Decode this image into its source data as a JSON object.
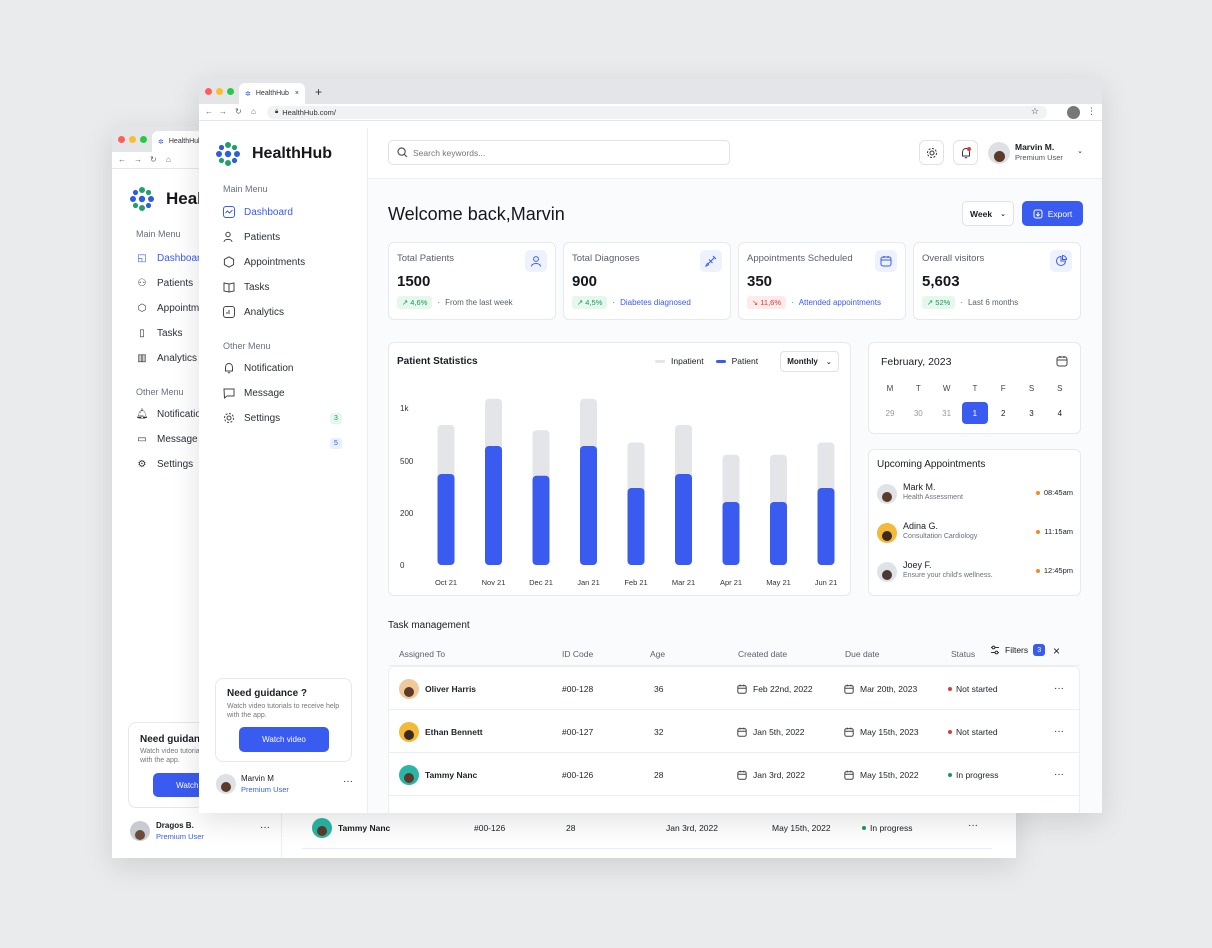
{
  "back_window": {
    "tab_title": "HealthHub",
    "logo_text": "HealthHub",
    "main_menu_label": "Main Menu",
    "nav": [
      "Dashboard",
      "Patients",
      "Appointments",
      "Tasks",
      "Analytics"
    ],
    "other_menu_label": "Other Menu",
    "other_nav": [
      "Notification",
      "Message",
      "Settings"
    ],
    "guidance_title": "Need guidance ?",
    "guidance_text": "Watch video tutorials to receive help with the app.",
    "guidance_button": "Watch video",
    "user_name": "Dragos B.",
    "user_role": "Premium User",
    "rows": [
      {
        "name": "Tammy Nanc",
        "id": "#00-126",
        "age": "28",
        "created": "Jan 3rd, 2022",
        "due": "May 15th, 2022",
        "status": "In progress"
      }
    ]
  },
  "browser": {
    "tab_title": "HealthHub",
    "new_tab": "+",
    "url": "HealthHub.com/"
  },
  "sidebar": {
    "logo_text": "HealthHub",
    "main_menu_label": "Main Menu",
    "items": [
      {
        "label": "Dashboard",
        "icon": "activity-icon",
        "active": true
      },
      {
        "label": "Patients",
        "icon": "users-icon"
      },
      {
        "label": "Appointments",
        "icon": "hexagon-icon"
      },
      {
        "label": "Tasks",
        "icon": "book-icon"
      },
      {
        "label": "Analytics",
        "icon": "chart-icon"
      }
    ],
    "other_menu_label": "Other Menu",
    "other_items": [
      {
        "label": "Notification",
        "icon": "bell-icon",
        "count": "3"
      },
      {
        "label": "Message",
        "icon": "message-icon",
        "count": "5"
      },
      {
        "label": "Settings",
        "icon": "gear-icon"
      }
    ],
    "guidance": {
      "title": "Need guidance ?",
      "text": "Watch video tutorials to receive help with the app.",
      "button": "Watch video"
    },
    "user": {
      "name": "Marvin M",
      "role": "Premium User",
      "more": "···"
    }
  },
  "header": {
    "search_placeholder": "Search keywords...",
    "user_name": "Marvin M.",
    "user_role": "Premium User"
  },
  "welcome": {
    "title": "Welcome back,Marvin",
    "period": "Week",
    "export_label": "Export"
  },
  "kpis": [
    {
      "label": "Total Patients",
      "value": "1500",
      "change": "4,6%",
      "trend": "up",
      "note": "From the last week",
      "note_link": false,
      "icon": "user-icon"
    },
    {
      "label": "Total Diagnoses",
      "value": "900",
      "change": "4,5%",
      "trend": "up",
      "note": "Diabetes diagnosed",
      "note_link": true,
      "icon": "syringe-icon"
    },
    {
      "label": "Appointments Scheduled",
      "value": "350",
      "change": "11,6%",
      "trend": "down",
      "note": "Attended appointments",
      "note_link": true,
      "icon": "calendar-icon"
    },
    {
      "label": "Overall visitors",
      "value": "5,603",
      "change": "52%",
      "trend": "up",
      "note": "Last 6 months",
      "note_link": false,
      "icon": "pie-icon"
    }
  ],
  "patient_stats": {
    "title": "Patient Statistics",
    "legend_inpatient": "Inpatient",
    "legend_patient": "Patient",
    "period": "Monthly"
  },
  "chart_data": {
    "type": "bar",
    "categories": [
      "Oct 21",
      "Nov 21",
      "Dec 21",
      "Jan 21",
      "Feb 21",
      "Mar 21",
      "Apr 21",
      "May 21",
      "Jun 21"
    ],
    "y_ticks": [
      "1k",
      "500",
      "200",
      "0"
    ],
    "series": [
      {
        "name": "Inpatient",
        "values": [
          800,
          950,
          770,
          950,
          700,
          800,
          630,
          630,
          700
        ],
        "color": "#e4e5e8"
      },
      {
        "name": "Patient",
        "values": [
          520,
          680,
          510,
          680,
          440,
          520,
          360,
          360,
          440
        ],
        "color": "#3a5bf0"
      }
    ],
    "ylim": [
      0,
      1000
    ]
  },
  "calendar": {
    "title": "February, 2023",
    "weekdays": [
      "M",
      "T",
      "W",
      "T",
      "F",
      "S",
      "S"
    ],
    "days": [
      "29",
      "30",
      "31",
      "1",
      "2",
      "3",
      "4"
    ],
    "selected": "1"
  },
  "appointments": {
    "title": "Upcoming Appointments",
    "items": [
      {
        "name": "Mark M.",
        "detail": "Health Assessment",
        "time": "08:45am"
      },
      {
        "name": "Adina G.",
        "detail": "Consultation Cardiology",
        "time": "11:15am"
      },
      {
        "name": "Joey F.",
        "detail": "Ensure your child's wellness.",
        "time": "12:45pm"
      }
    ]
  },
  "tasks": {
    "title": "Task management",
    "columns": [
      "Assigned To",
      "ID Code",
      "Age",
      "Created date",
      "Due date",
      "Status"
    ],
    "filters_label": "Filters",
    "filters_count": "3",
    "rows": [
      {
        "name": "Oliver Harris",
        "id": "#00-128",
        "age": "36",
        "created": "Feb 22nd, 2022",
        "due": "Mar 20th, 2023",
        "status": "Not started",
        "status_color": "#e0393e"
      },
      {
        "name": "Ethan Bennett",
        "id": "#00-127",
        "age": "32",
        "created": "Jan 5th, 2022",
        "due": "May 15th, 2023",
        "status": "Not started",
        "status_color": "#e0393e"
      },
      {
        "name": "Tammy Nanc",
        "id": "#00-126",
        "age": "28",
        "created": "Jan 3rd, 2022",
        "due": "May 15th, 2022",
        "status": "In progress",
        "status_color": "#1a9a55"
      }
    ],
    "row_menu": "···"
  },
  "colors": {
    "accent": "#3a5bf0",
    "logo_green": "#22a06b",
    "logo_blue": "#2f5be0"
  }
}
